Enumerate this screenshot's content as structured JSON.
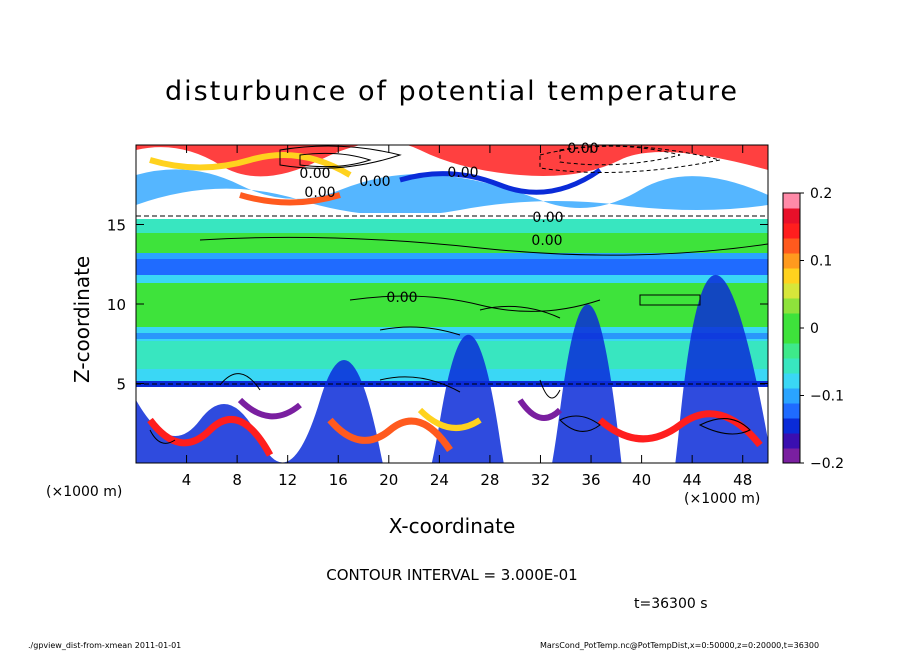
{
  "chart_data": {
    "type": "heatmap",
    "title": "disturbunce of potential temperature",
    "xlabel": "X-coordinate",
    "ylabel": "Z-coordinate",
    "x_unit_label_left": "(×1000 m)",
    "x_unit_label_right": "(×1000 m)",
    "x_ticks": [
      4,
      8,
      12,
      16,
      20,
      24,
      28,
      32,
      36,
      40,
      44,
      48
    ],
    "y_ticks": [
      5,
      10,
      15
    ],
    "xlim": [
      0,
      50
    ],
    "ylim": [
      0,
      20
    ],
    "colorbar": {
      "ticks": [
        "0.2",
        "0.1",
        "0",
        "−0.1",
        "−0.2"
      ],
      "tick_values": [
        0.2,
        0.1,
        0,
        -0.1,
        -0.2
      ],
      "range": [
        -0.2,
        0.2
      ],
      "colors": [
        "#7a1fa0",
        "#3a0fb0",
        "#0a2bd8",
        "#1f6bff",
        "#2aa4ff",
        "#3ad7f5",
        "#38e6c0",
        "#3ee98a",
        "#3ee33b",
        "#3ee33b",
        "#8ee33b",
        "#d7e63a",
        "#ffd21e",
        "#ff9a1e",
        "#ff5a1e",
        "#ff1e1e",
        "#e8102a",
        "#ff8aa8"
      ]
    },
    "contour_labels": [
      "0.00",
      "0.00",
      "0.00",
      "0.00",
      "0.00",
      "0.00",
      "0.00",
      "0.00"
    ],
    "contour_interval_text": "CONTOUR INTERVAL = 3.000E-01",
    "time_text": "t=36300 s"
  },
  "footer": {
    "left": "./gpview_dist-from-xmean   2011-01-01",
    "right": "MarsCond_PotTemp.nc@PotTempDist,x=0:50000,z=0:20000,t=36300"
  }
}
